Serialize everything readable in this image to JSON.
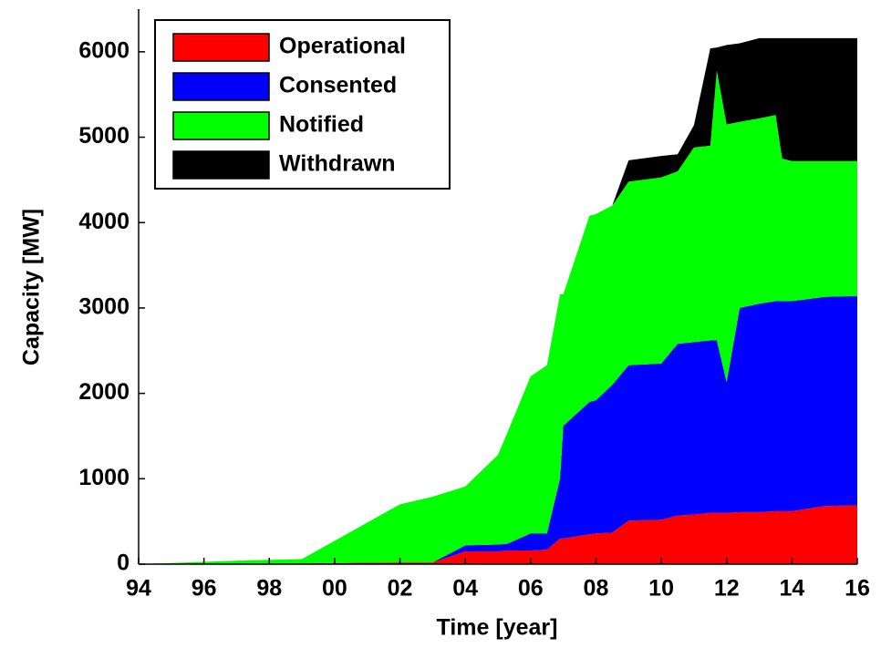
{
  "chart_data": {
    "type": "stacked-area",
    "xlabel": "Time [year]",
    "ylabel": "Capacity [MW]",
    "x": [
      1994,
      1997,
      1999,
      2002,
      2003,
      2004,
      2005,
      2005.3,
      2006,
      2006.5,
      2006.9,
      2007,
      2007.8,
      2008,
      2008.5,
      2009,
      2010,
      2010.5,
      2011,
      2011.5,
      2011.7,
      2012,
      2012.4,
      2013,
      2013.5,
      2013.7,
      2014,
      2015,
      2016
    ],
    "series": [
      {
        "name": "Operational",
        "color": "#ff0000",
        "values": [
          0,
          0,
          10,
          20,
          20,
          150,
          150,
          160,
          160,
          170,
          300,
          300,
          350,
          360,
          370,
          510,
          520,
          570,
          580,
          600,
          600,
          600,
          610,
          610,
          620,
          620,
          620,
          680,
          690
        ]
      },
      {
        "name": "Consented",
        "color": "#0000ff",
        "values": [
          0,
          0,
          0,
          0,
          0,
          70,
          80,
          80,
          200,
          190,
          700,
          1320,
          1550,
          1560,
          1730,
          1820,
          1830,
          2010,
          2020,
          2020,
          2020,
          1530,
          2390,
          2440,
          2460,
          2460,
          2460,
          2450,
          2450
        ]
      },
      {
        "name": "Notified",
        "color": "#00ff00",
        "values": [
          0,
          40,
          50,
          680,
          770,
          690,
          1050,
          1310,
          1840,
          1970,
          2160,
          1540,
          2180,
          2180,
          2100,
          2150,
          2180,
          2020,
          2280,
          2280,
          3160,
          3020,
          2180,
          2170,
          2180,
          1670,
          1640,
          1590,
          1580
        ]
      },
      {
        "name": "Withdrawn",
        "color": "#000000",
        "values": [
          0,
          0,
          0,
          0,
          0,
          0,
          0,
          0,
          0,
          0,
          0,
          0,
          0,
          0,
          0,
          250,
          250,
          200,
          260,
          1140,
          270,
          930,
          920,
          940,
          900,
          1410,
          1440,
          1440,
          1440
        ]
      }
    ],
    "xlim": [
      1994,
      2016
    ],
    "xticks": [
      {
        "value": 1994,
        "label": "94"
      },
      {
        "value": 1996,
        "label": "96"
      },
      {
        "value": 1998,
        "label": "98"
      },
      {
        "value": 2000,
        "label": "00"
      },
      {
        "value": 2002,
        "label": "02"
      },
      {
        "value": 2004,
        "label": "04"
      },
      {
        "value": 2006,
        "label": "06"
      },
      {
        "value": 2008,
        "label": "08"
      },
      {
        "value": 2010,
        "label": "10"
      },
      {
        "value": 2012,
        "label": "12"
      },
      {
        "value": 2014,
        "label": "14"
      },
      {
        "value": 2016,
        "label": "16"
      }
    ],
    "ylim": [
      0,
      6500
    ],
    "yticks": [
      0,
      1000,
      2000,
      3000,
      4000,
      5000,
      6000
    ],
    "legend": "upper left"
  }
}
